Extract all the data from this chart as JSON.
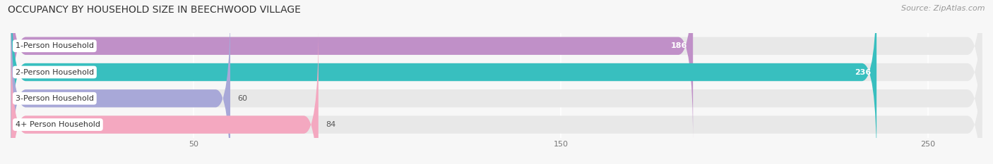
{
  "title": "OCCUPANCY BY HOUSEHOLD SIZE IN BEECHWOOD VILLAGE",
  "source": "Source: ZipAtlas.com",
  "categories": [
    "1-Person Household",
    "2-Person Household",
    "3-Person Household",
    "4+ Person Household"
  ],
  "values": [
    186,
    236,
    60,
    84
  ],
  "bar_colors": [
    "#c090c8",
    "#38bfbf",
    "#a8a8d8",
    "#f4a8c0"
  ],
  "xlim": [
    0,
    265
  ],
  "xticks": [
    50,
    150,
    250
  ],
  "background_color": "#f7f7f7",
  "bar_bg_color": "#e8e8e8",
  "title_fontsize": 10,
  "source_fontsize": 8,
  "label_fontsize": 8,
  "value_fontsize": 8,
  "bar_height": 0.68,
  "figsize": [
    14.06,
    2.33
  ],
  "dpi": 100
}
